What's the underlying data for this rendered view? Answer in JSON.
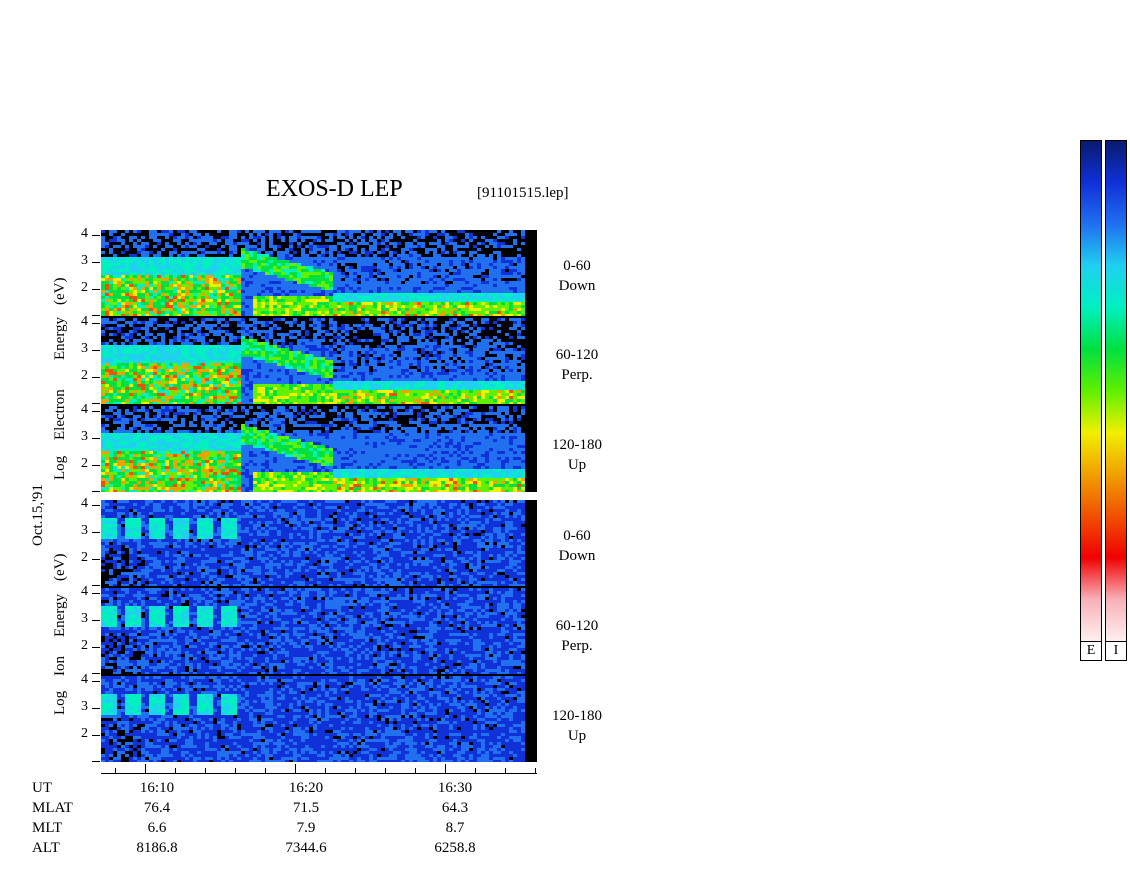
{
  "title": "EXOS-D LEP",
  "file": "[91101515.lep]",
  "electron_ylabel": [
    "Log",
    "Electron",
    "Energy",
    "(eV)"
  ],
  "ion_ylabel": [
    "Log",
    "Ion",
    "Energy",
    "(eV)"
  ],
  "date_label": "Oct.15,'91",
  "panels": [
    {
      "species": "Electron",
      "pitch": "0-60",
      "dir": "Down"
    },
    {
      "species": "Electron",
      "pitch": "60-120",
      "dir": "Perp."
    },
    {
      "species": "Electron",
      "pitch": "120-180",
      "dir": "Up"
    },
    {
      "species": "Ion",
      "pitch": "0-60",
      "dir": "Down"
    },
    {
      "species": "Ion",
      "pitch": "60-120",
      "dir": "Perp."
    },
    {
      "species": "Ion",
      "pitch": "120-180",
      "dir": "Up"
    }
  ],
  "ticks": [
    "4",
    "3",
    "2"
  ],
  "colorbar_labels": [
    "E",
    "I"
  ],
  "colorbar_stops": [
    "#0a1a6e",
    "#1030d8",
    "#2070f0",
    "#20d0f0",
    "#00f0c0",
    "#00e040",
    "#60f000",
    "#f0f000",
    "#f0a000",
    "#f05000",
    "#f00000",
    "#f8b0b8",
    "#fff0f0"
  ],
  "chart_data": {
    "type": "heatmap",
    "title": "EXOS-D LEP",
    "ylabel": "Log Energy (eV)",
    "ylim": [
      1,
      4.2
    ],
    "yticks": [
      2,
      3,
      4
    ],
    "xlabel": "UT",
    "x_ticks": [
      "16:10",
      "16:20",
      "16:30"
    ],
    "orbit_table": {
      "UT": [
        "16:10",
        "16:20",
        "16:30"
      ],
      "MLAT": [
        "76.4",
        "71.5",
        "64.3"
      ],
      "MLT": [
        "6.6",
        "7.9",
        "8.7"
      ],
      "ALT": [
        "8186.8",
        "7344.6",
        "6258.8"
      ]
    },
    "row_labels": [
      "UT",
      "MLAT",
      "MLT",
      "ALT"
    ]
  }
}
